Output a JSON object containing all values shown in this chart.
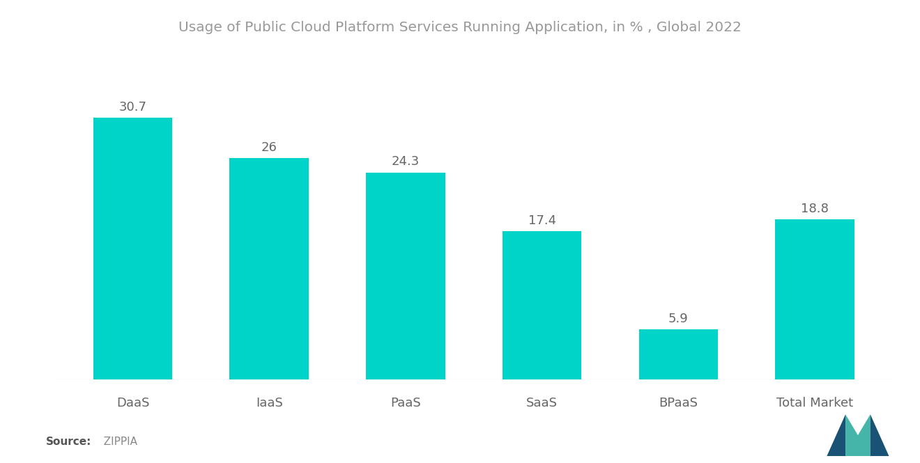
{
  "title": "Usage of Public Cloud Platform Services Running Application, in % , Global 2022",
  "categories": [
    "DaaS",
    "IaaS",
    "PaaS",
    "SaaS",
    "BPaaS",
    "Total Market"
  ],
  "values": [
    30.7,
    26,
    24.3,
    17.4,
    5.9,
    18.8
  ],
  "bar_color": "#00D4C8",
  "label_color": "#666666",
  "title_color": "#999999",
  "source_bold": "Source:",
  "source_value": "  ZIPPIA",
  "source_color": "#888888",
  "ylim": [
    0,
    38
  ],
  "bar_width": 0.58,
  "figsize": [
    13.2,
    6.65
  ],
  "dpi": 100,
  "value_fontsize": 13,
  "category_fontsize": 13,
  "title_fontsize": 14.5
}
